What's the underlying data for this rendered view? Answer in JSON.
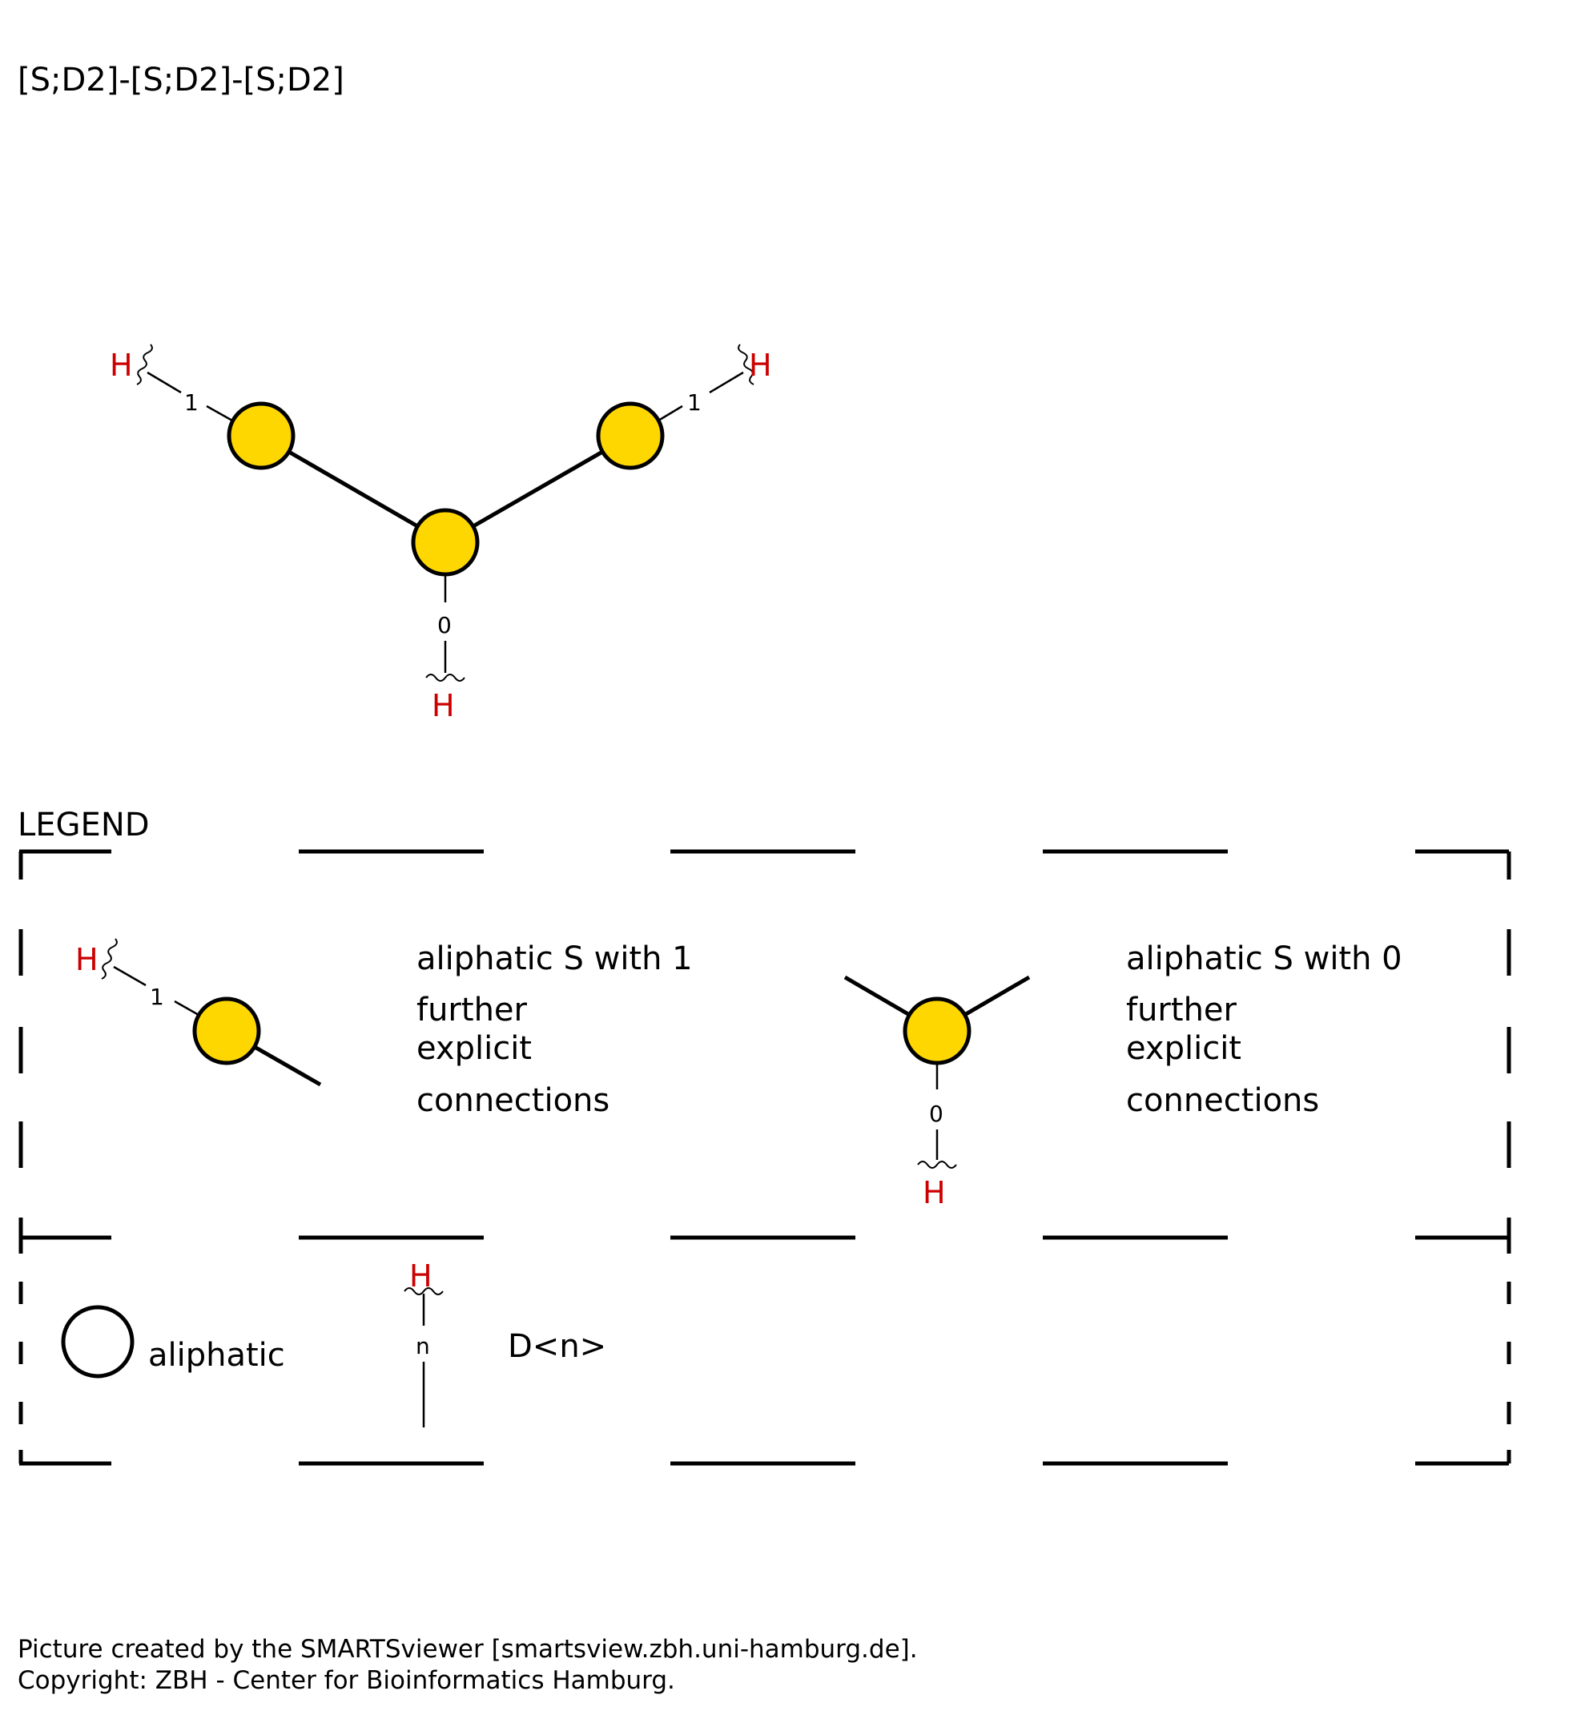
{
  "smarts": "[S;D2]-[S;D2]-[S;D2]",
  "molecule": {
    "atom_color": "#FFD700",
    "h_color": "#CC0000",
    "h_label": "H",
    "h_counts": [
      "1",
      "1",
      "0"
    ]
  },
  "legend": {
    "title": "LEGEND",
    "entry1": {
      "h_label": "H",
      "count": "1",
      "line1": "aliphatic S with 1",
      "line2": "further",
      "line3": "explicit",
      "line4": "connections"
    },
    "entry2": {
      "h_label": "H",
      "count": "0",
      "line1": "aliphatic S with 0",
      "line2": "further",
      "line3": "explicit",
      "line4": "connections"
    },
    "key_aliphatic": "aliphatic",
    "key_degree_h": "H",
    "key_degree_n": "n",
    "key_degree_label": "D<n>"
  },
  "footer": {
    "line1": "Picture created by the SMARTSviewer [smartsview.zbh.uni-hamburg.de].",
    "line2": "Copyright: ZBH - Center for Bioinformatics Hamburg."
  }
}
